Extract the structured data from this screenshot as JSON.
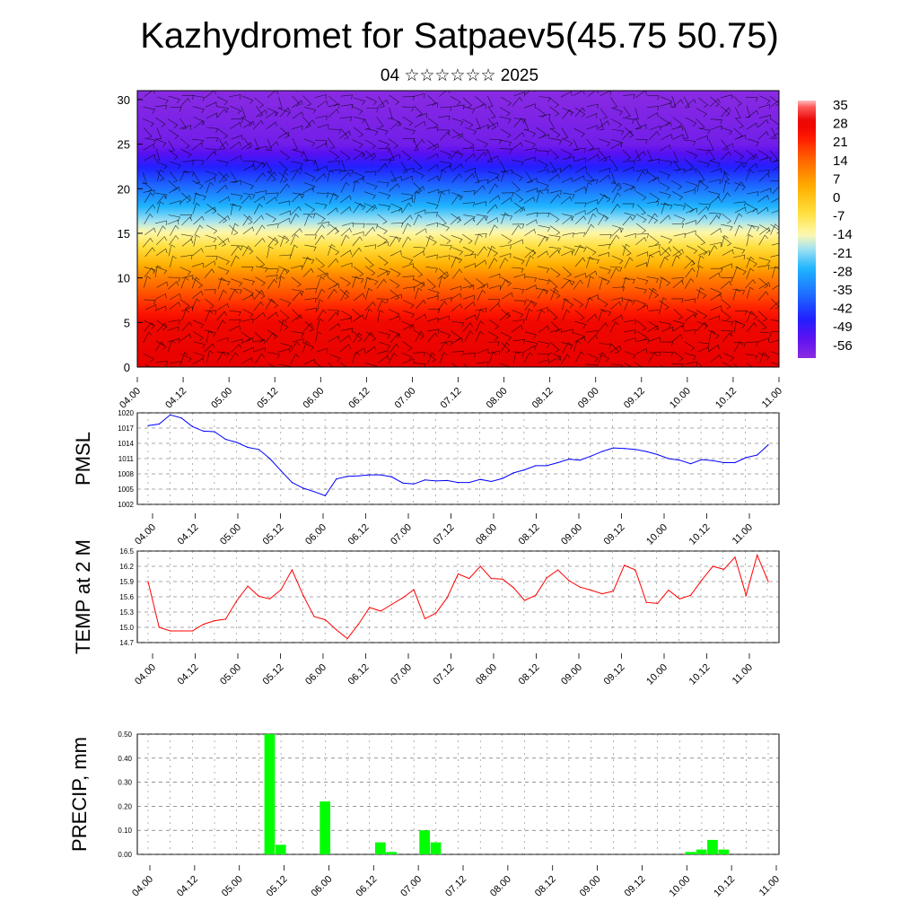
{
  "header": {
    "title": "Kazhydromet for Satpaev5(45.75 50.75)",
    "subtitle": "04 ☆☆☆☆☆☆ 2025"
  },
  "colors": {
    "pmsl_line": "#0000ff",
    "temp_line": "#ff0000",
    "precip_bar": "#00ff00"
  },
  "chart_data": [
    {
      "type": "heatmap",
      "title": "",
      "x_ticks": [
        "04.00",
        "04.12",
        "05.00",
        "05.12",
        "06.00",
        "06.12",
        "07.00",
        "07.12",
        "08.00",
        "08.12",
        "09.00",
        "09.12",
        "10.00",
        "10.12",
        "11.00"
      ],
      "y_ticks": [
        0,
        5,
        10,
        15,
        20,
        25,
        30
      ],
      "ylim": [
        0,
        31
      ],
      "colorbar_labels": [
        "35",
        "28",
        "21",
        "14",
        "7",
        "0",
        "-7",
        "-14",
        "-21",
        "-28",
        "-35",
        "-42",
        "-49",
        "-56"
      ],
      "colorbar_range": [
        -60,
        38
      ],
      "overlay": "wind barbs",
      "profile": [
        {
          "level": 0,
          "value": 30
        },
        {
          "level": 5,
          "value": 28
        },
        {
          "level": 10,
          "value": 12
        },
        {
          "level": 15,
          "value": -12
        },
        {
          "level": 20,
          "value": -35
        },
        {
          "level": 25,
          "value": -56
        },
        {
          "level": 31,
          "value": -60
        }
      ]
    },
    {
      "type": "line",
      "ylabel": "PMSL",
      "x_ticks": [
        "04.00",
        "04.12",
        "05.00",
        "05.12",
        "06.00",
        "06.12",
        "07.00",
        "07.12",
        "08.00",
        "08.12",
        "09.00",
        "09.12",
        "10.00",
        "10.12",
        "11.00"
      ],
      "y_ticks": [
        "1020",
        "1017",
        "1014",
        "1011",
        "1008",
        "1005",
        "1002"
      ],
      "ylim": [
        1002,
        1020
      ],
      "x_step_hours": 3,
      "series": [
        {
          "values": [
            1017.5,
            1017.8,
            1019.6,
            1019.0,
            1017.3,
            1016.4,
            1016.3,
            1014.8,
            1014.2,
            1013.2,
            1012.8,
            1011.0,
            1008.6,
            1006.3,
            1005.2,
            1004.5,
            1003.7,
            1007.0,
            1007.5,
            1007.6,
            1007.8,
            1007.8,
            1007.4,
            1006.2,
            1006.0,
            1006.8,
            1006.6,
            1006.7,
            1006.3,
            1006.3,
            1006.9,
            1006.5,
            1007.1,
            1008.2,
            1008.8,
            1009.6,
            1009.6,
            1010.2,
            1010.9,
            1010.7,
            1011.5,
            1012.4,
            1013.1,
            1013.0,
            1012.8,
            1012.4,
            1011.8,
            1011.0,
            1010.7,
            1010.0,
            1010.8,
            1010.6,
            1010.2,
            1010.2,
            1011.2,
            1011.7,
            1013.7
          ]
        }
      ]
    },
    {
      "type": "line",
      "ylabel": "TEMP at 2 M",
      "x_ticks": [
        "04.00",
        "04.12",
        "05.00",
        "05.12",
        "06.00",
        "06.12",
        "07.00",
        "07.12",
        "08.00",
        "08.12",
        "09.00",
        "09.12",
        "10.00",
        "10.12",
        "11.00"
      ],
      "y_ticks": [
        "16.5",
        "16.2",
        "15.9",
        "15.6",
        "15.3",
        "15.0",
        "14.7"
      ],
      "ylim": [
        14.7,
        16.5
      ],
      "x_step_hours": 3,
      "series": [
        {
          "values": [
            15.9,
            15.0,
            14.93,
            14.93,
            14.93,
            15.06,
            15.13,
            15.16,
            15.52,
            15.81,
            15.61,
            15.56,
            15.74,
            16.13,
            15.63,
            15.21,
            15.15,
            14.95,
            14.78,
            15.06,
            15.39,
            15.32,
            15.45,
            15.58,
            15.74,
            15.17,
            15.28,
            15.58,
            16.05,
            15.96,
            16.2,
            15.96,
            15.95,
            15.78,
            15.53,
            15.63,
            15.97,
            16.13,
            15.92,
            15.79,
            15.73,
            15.66,
            15.71,
            16.22,
            16.13,
            15.49,
            15.47,
            15.73,
            15.56,
            15.63,
            15.93,
            16.2,
            16.14,
            16.38,
            15.63,
            16.42,
            15.9
          ]
        }
      ]
    },
    {
      "type": "bar",
      "ylabel": "PRECIP, mm",
      "x_ticks": [
        "04.00",
        "04.12",
        "05.00",
        "05.12",
        "06.00",
        "06.12",
        "07.00",
        "07.12",
        "08.00",
        "08.12",
        "09.00",
        "09.12",
        "10.00",
        "10.12",
        "11.00"
      ],
      "y_ticks": [
        "0.50",
        "0.40",
        "0.30",
        "0.20",
        "0.10",
        "0.00"
      ],
      "ylim": [
        0,
        0.5
      ],
      "x_step_hours": 3,
      "values": [
        0,
        0,
        0,
        0,
        0,
        0,
        0,
        0,
        0,
        0,
        0,
        0.5,
        0.04,
        0,
        0,
        0,
        0.22,
        0,
        0,
        0,
        0,
        0.05,
        0.01,
        0,
        0,
        0.1,
        0.05,
        0,
        0,
        0,
        0,
        0,
        0,
        0,
        0,
        0,
        0,
        0,
        0,
        0,
        0,
        0,
        0,
        0,
        0,
        0,
        0,
        0,
        0,
        0.01,
        0.02,
        0.06,
        0.02,
        0,
        0,
        0,
        0
      ]
    }
  ]
}
